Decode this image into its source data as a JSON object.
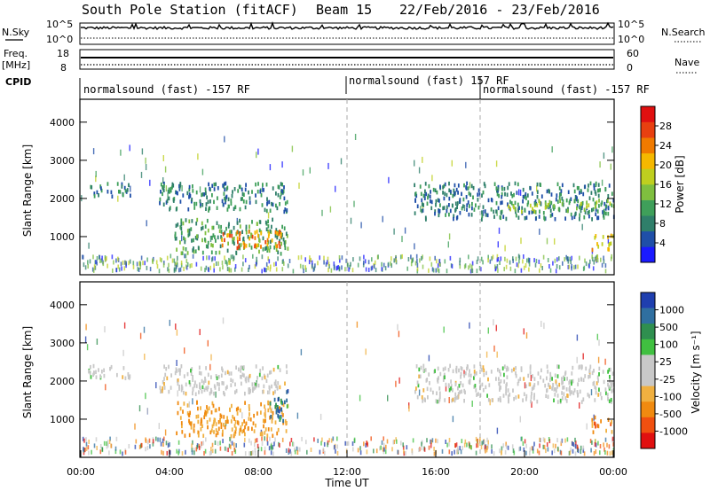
{
  "title": {
    "station": "South Pole Station (fitACF)",
    "beam": "Beam 15",
    "date_range": "22/Feb/2016 - 23/Feb/2016"
  },
  "header": {
    "nsky_label": "N.Sky",
    "nsearch_label": "N.Search",
    "nsky_ticks": [
      "10^5",
      "10^0"
    ],
    "nsearch_ticks": [
      "10^5",
      "10^0"
    ],
    "freq_label": "Freq.",
    "freq_unit": "[MHz]",
    "freq_ticks": [
      "18",
      "8"
    ],
    "nave_label": "Nave",
    "nave_ticks": [
      "60",
      "0"
    ],
    "cpid_label": "CPID",
    "cpid_segments": [
      {
        "label": "normalsound (fast) -157 RF",
        "start_hour": 0,
        "end_hour": 12
      },
      {
        "label": "normalsound (fast) 157 RF",
        "start_hour": 12,
        "end_hour": 18
      },
      {
        "label": "normalsound (fast) -157 RF",
        "start_hour": 18,
        "end_hour": 24
      }
    ]
  },
  "colors": {
    "power_scale": [
      "#1a1aff",
      "#1f4fa8",
      "#2f7f6a",
      "#3f9f5a",
      "#7fbf3f",
      "#bfcf1f",
      "#f5b800",
      "#f07a00",
      "#e84010",
      "#e01010"
    ],
    "velocity_scale": [
      "#e01010",
      "#f05010",
      "#f08a10",
      "#f0b040",
      "#c8c8c8",
      "#c8c8c8",
      "#40c040",
      "#2f8f4f",
      "#2f6fa0",
      "#1f3faf"
    ]
  },
  "chart_data": [
    {
      "type": "heatmap",
      "panel": "power",
      "ylabel": "Slant Range [km]",
      "yticks": [
        1000,
        2000,
        3000,
        4000
      ],
      "ylim": [
        0,
        4600
      ],
      "xlim_hours": [
        0,
        24
      ],
      "colorbar": {
        "label": "Power [dB]",
        "ticks": [
          4,
          8,
          12,
          16,
          20,
          24,
          28
        ],
        "range": [
          0,
          32
        ]
      },
      "scatter_regions": [
        {
          "t_start": 0.3,
          "t_end": 2.2,
          "r_start": 2100,
          "r_end": 2450,
          "value": 7
        },
        {
          "t_start": 3.5,
          "t_end": 9.3,
          "r_start": 1700,
          "r_end": 2450,
          "value": 9
        },
        {
          "t_start": 4.2,
          "t_end": 9.3,
          "r_start": 600,
          "r_end": 1500,
          "value": 11
        },
        {
          "t_start": 6.2,
          "t_end": 9.0,
          "r_start": 750,
          "r_end": 1200,
          "value": 24
        },
        {
          "t_start": 15.0,
          "t_end": 24.0,
          "r_start": 1500,
          "r_end": 2450,
          "value": 7
        },
        {
          "t_start": 19.0,
          "t_end": 24.0,
          "r_start": 1700,
          "r_end": 2000,
          "value": 15
        },
        {
          "t_start": 23.0,
          "t_end": 24.0,
          "r_start": 700,
          "r_end": 1100,
          "value": 22
        }
      ]
    },
    {
      "type": "heatmap",
      "panel": "velocity",
      "ylabel": "Slant Range [km]",
      "xlabel": "Time UT",
      "xticks": [
        "00:00",
        "04:00",
        "08:00",
        "12:00",
        "16:00",
        "20:00",
        "00:00"
      ],
      "yticks": [
        1000,
        2000,
        3000,
        4000
      ],
      "ylim": [
        0,
        4600
      ],
      "xlim_hours": [
        0,
        24
      ],
      "colorbar": {
        "label": "Velocity [m s^-1]",
        "ticks": [
          1000,
          500,
          100,
          25,
          -25,
          -100,
          -500,
          -1000
        ]
      },
      "scatter_regions": [
        {
          "t_start": 0.3,
          "t_end": 2.2,
          "r_start": 2100,
          "r_end": 2450,
          "value": 0
        },
        {
          "t_start": 3.5,
          "t_end": 9.3,
          "r_start": 1700,
          "r_end": 2450,
          "value": 0
        },
        {
          "t_start": 4.2,
          "t_end": 9.3,
          "r_start": 600,
          "r_end": 1500,
          "value": -200
        },
        {
          "t_start": 8.5,
          "t_end": 9.3,
          "r_start": 900,
          "r_end": 1800,
          "value": 300
        },
        {
          "t_start": 15.0,
          "t_end": 24.0,
          "r_start": 1500,
          "r_end": 2450,
          "value": 0
        },
        {
          "t_start": 23.0,
          "t_end": 24.0,
          "r_start": 700,
          "r_end": 1100,
          "value": -400
        }
      ]
    }
  ]
}
